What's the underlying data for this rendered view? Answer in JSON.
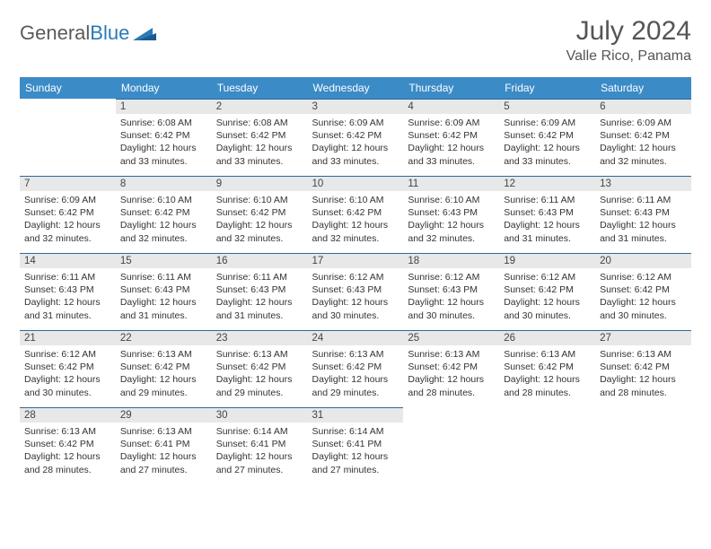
{
  "logo": {
    "text1": "General",
    "text2": "Blue"
  },
  "title": "July 2024",
  "location": "Valle Rico, Panama",
  "colors": {
    "header_bg": "#3b8bc7",
    "header_text": "#ffffff",
    "daynum_bg": "#e8e8e8",
    "daynum_border": "#2a6a9e",
    "logo_gray": "#5a5a5a",
    "logo_blue": "#2a7ab8"
  },
  "weekdays": [
    "Sunday",
    "Monday",
    "Tuesday",
    "Wednesday",
    "Thursday",
    "Friday",
    "Saturday"
  ],
  "first_day_of_week_index": 1,
  "days": [
    {
      "n": 1,
      "sunrise": "6:08 AM",
      "sunset": "6:42 PM",
      "daylight": "12 hours and 33 minutes."
    },
    {
      "n": 2,
      "sunrise": "6:08 AM",
      "sunset": "6:42 PM",
      "daylight": "12 hours and 33 minutes."
    },
    {
      "n": 3,
      "sunrise": "6:09 AM",
      "sunset": "6:42 PM",
      "daylight": "12 hours and 33 minutes."
    },
    {
      "n": 4,
      "sunrise": "6:09 AM",
      "sunset": "6:42 PM",
      "daylight": "12 hours and 33 minutes."
    },
    {
      "n": 5,
      "sunrise": "6:09 AM",
      "sunset": "6:42 PM",
      "daylight": "12 hours and 33 minutes."
    },
    {
      "n": 6,
      "sunrise": "6:09 AM",
      "sunset": "6:42 PM",
      "daylight": "12 hours and 32 minutes."
    },
    {
      "n": 7,
      "sunrise": "6:09 AM",
      "sunset": "6:42 PM",
      "daylight": "12 hours and 32 minutes."
    },
    {
      "n": 8,
      "sunrise": "6:10 AM",
      "sunset": "6:42 PM",
      "daylight": "12 hours and 32 minutes."
    },
    {
      "n": 9,
      "sunrise": "6:10 AM",
      "sunset": "6:42 PM",
      "daylight": "12 hours and 32 minutes."
    },
    {
      "n": 10,
      "sunrise": "6:10 AM",
      "sunset": "6:42 PM",
      "daylight": "12 hours and 32 minutes."
    },
    {
      "n": 11,
      "sunrise": "6:10 AM",
      "sunset": "6:43 PM",
      "daylight": "12 hours and 32 minutes."
    },
    {
      "n": 12,
      "sunrise": "6:11 AM",
      "sunset": "6:43 PM",
      "daylight": "12 hours and 31 minutes."
    },
    {
      "n": 13,
      "sunrise": "6:11 AM",
      "sunset": "6:43 PM",
      "daylight": "12 hours and 31 minutes."
    },
    {
      "n": 14,
      "sunrise": "6:11 AM",
      "sunset": "6:43 PM",
      "daylight": "12 hours and 31 minutes."
    },
    {
      "n": 15,
      "sunrise": "6:11 AM",
      "sunset": "6:43 PM",
      "daylight": "12 hours and 31 minutes."
    },
    {
      "n": 16,
      "sunrise": "6:11 AM",
      "sunset": "6:43 PM",
      "daylight": "12 hours and 31 minutes."
    },
    {
      "n": 17,
      "sunrise": "6:12 AM",
      "sunset": "6:43 PM",
      "daylight": "12 hours and 30 minutes."
    },
    {
      "n": 18,
      "sunrise": "6:12 AM",
      "sunset": "6:43 PM",
      "daylight": "12 hours and 30 minutes."
    },
    {
      "n": 19,
      "sunrise": "6:12 AM",
      "sunset": "6:42 PM",
      "daylight": "12 hours and 30 minutes."
    },
    {
      "n": 20,
      "sunrise": "6:12 AM",
      "sunset": "6:42 PM",
      "daylight": "12 hours and 30 minutes."
    },
    {
      "n": 21,
      "sunrise": "6:12 AM",
      "sunset": "6:42 PM",
      "daylight": "12 hours and 30 minutes."
    },
    {
      "n": 22,
      "sunrise": "6:13 AM",
      "sunset": "6:42 PM",
      "daylight": "12 hours and 29 minutes."
    },
    {
      "n": 23,
      "sunrise": "6:13 AM",
      "sunset": "6:42 PM",
      "daylight": "12 hours and 29 minutes."
    },
    {
      "n": 24,
      "sunrise": "6:13 AM",
      "sunset": "6:42 PM",
      "daylight": "12 hours and 29 minutes."
    },
    {
      "n": 25,
      "sunrise": "6:13 AM",
      "sunset": "6:42 PM",
      "daylight": "12 hours and 28 minutes."
    },
    {
      "n": 26,
      "sunrise": "6:13 AM",
      "sunset": "6:42 PM",
      "daylight": "12 hours and 28 minutes."
    },
    {
      "n": 27,
      "sunrise": "6:13 AM",
      "sunset": "6:42 PM",
      "daylight": "12 hours and 28 minutes."
    },
    {
      "n": 28,
      "sunrise": "6:13 AM",
      "sunset": "6:42 PM",
      "daylight": "12 hours and 28 minutes."
    },
    {
      "n": 29,
      "sunrise": "6:13 AM",
      "sunset": "6:41 PM",
      "daylight": "12 hours and 27 minutes."
    },
    {
      "n": 30,
      "sunrise": "6:14 AM",
      "sunset": "6:41 PM",
      "daylight": "12 hours and 27 minutes."
    },
    {
      "n": 31,
      "sunrise": "6:14 AM",
      "sunset": "6:41 PM",
      "daylight": "12 hours and 27 minutes."
    }
  ],
  "labels": {
    "sunrise": "Sunrise:",
    "sunset": "Sunset:",
    "daylight": "Daylight:"
  }
}
